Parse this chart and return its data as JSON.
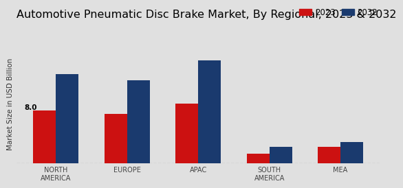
{
  "title": "Automotive Pneumatic Disc Brake Market, By Regional, 2023 & 2032",
  "categories": [
    "NORTH\nAMERICA",
    "EUROPE",
    "APAC",
    "SOUTH\nAMERICA",
    "MEA"
  ],
  "values_2023": [
    8.0,
    7.5,
    9.0,
    1.5,
    2.5
  ],
  "values_2032": [
    13.5,
    12.5,
    15.5,
    2.5,
    3.2
  ],
  "color_2023": "#cc1111",
  "color_2032": "#1a3a6e",
  "annotation_label": "8.0",
  "annotation_bar_idx": 0,
  "ylabel": "Market Size in USD Billion",
  "background_color": "#e0e0e0",
  "legend_labels": [
    "2023",
    "2032"
  ],
  "bar_width": 0.32,
  "ylim": [
    0,
    18
  ],
  "title_fontsize": 11.5,
  "axis_label_fontsize": 7.5,
  "tick_fontsize": 7,
  "legend_fontsize": 8.5
}
